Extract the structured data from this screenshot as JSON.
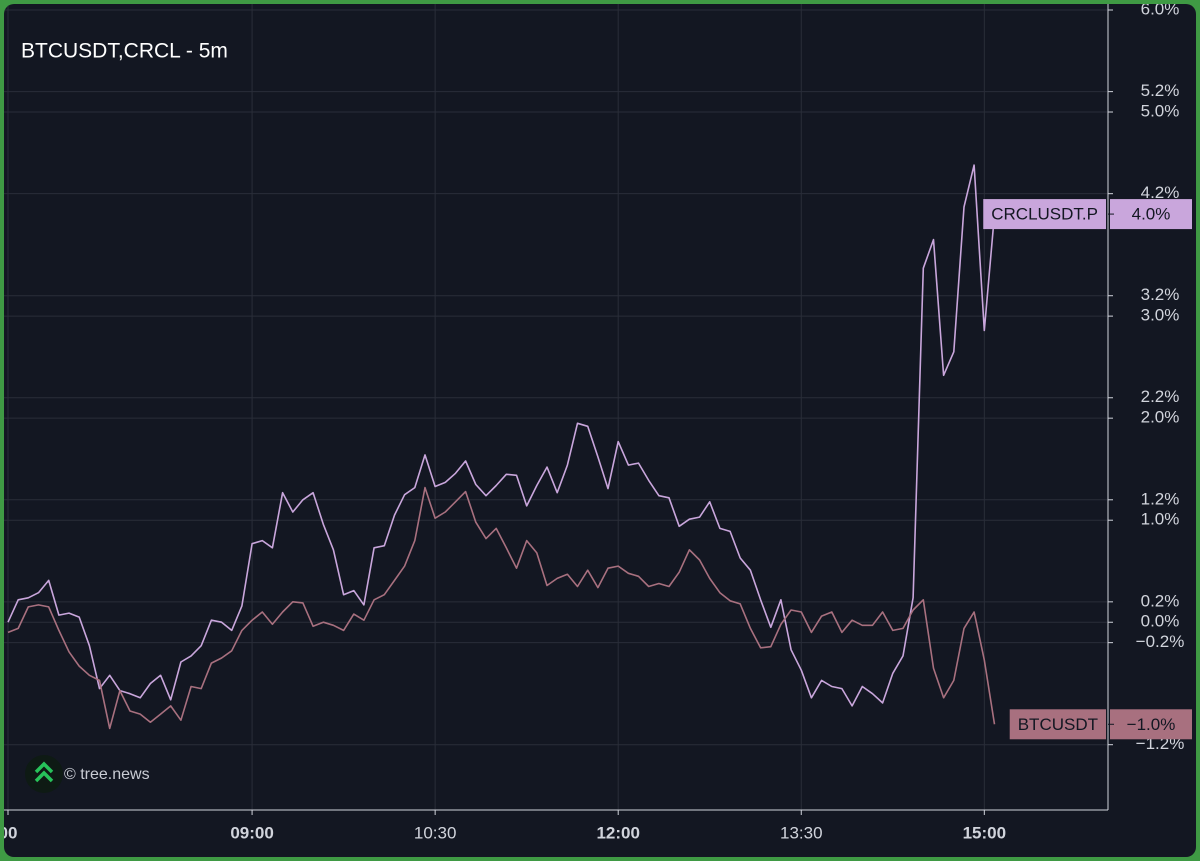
{
  "chart_data": {
    "type": "line",
    "title": "BTCUSDT,CRCL - 5m",
    "watermark": "© tree.news",
    "categories": [
      "00",
      null,
      null,
      null,
      null,
      null,
      null,
      null,
      null,
      null,
      null,
      null,
      null,
      null,
      null,
      null,
      null,
      null,
      null,
      null,
      null,
      null,
      null,
      null,
      "09:00",
      null,
      null,
      null,
      null,
      null,
      null,
      null,
      null,
      null,
      null,
      null,
      null,
      null,
      null,
      null,
      null,
      null,
      "10:30",
      null,
      null,
      null,
      null,
      null,
      null,
      null,
      null,
      null,
      null,
      null,
      null,
      null,
      null,
      null,
      null,
      null,
      "12:00",
      null,
      null,
      null,
      null,
      null,
      null,
      null,
      null,
      null,
      null,
      null,
      null,
      null,
      null,
      null,
      null,
      null,
      "13:30",
      null,
      null,
      null,
      null,
      null,
      null,
      null,
      null,
      null,
      null,
      null,
      null,
      null,
      null,
      null,
      null,
      null,
      "15:00",
      null
    ],
    "series": [
      {
        "name": "CRCLUSDT.P",
        "color": "#c9a6dc",
        "last_value_label": "4.0%",
        "values": [
          0.0,
          0.22,
          0.24,
          0.29,
          0.41,
          0.07,
          0.09,
          0.05,
          -0.23,
          -0.65,
          -0.52,
          -0.67,
          -0.7,
          -0.74,
          -0.6,
          -0.52,
          -0.76,
          -0.39,
          -0.33,
          -0.23,
          0.02,
          0.0,
          -0.08,
          0.16,
          0.77,
          0.8,
          0.73,
          1.27,
          1.08,
          1.2,
          1.27,
          0.96,
          0.71,
          0.27,
          0.31,
          0.17,
          0.73,
          0.75,
          1.05,
          1.25,
          1.32,
          1.64,
          1.33,
          1.37,
          1.46,
          1.58,
          1.35,
          1.24,
          1.34,
          1.45,
          1.44,
          1.14,
          1.34,
          1.52,
          1.27,
          1.54,
          1.95,
          1.92,
          1.62,
          1.31,
          1.77,
          1.54,
          1.56,
          1.39,
          1.24,
          1.22,
          0.94,
          1.01,
          1.03,
          1.18,
          0.92,
          0.89,
          0.63,
          0.51,
          0.22,
          -0.05,
          0.22,
          -0.27,
          -0.47,
          -0.74,
          -0.57,
          -0.63,
          -0.65,
          -0.82,
          -0.63,
          -0.7,
          -0.79,
          -0.5,
          -0.33,
          0.24,
          3.47,
          3.75,
          2.42,
          2.65,
          4.07,
          4.48,
          2.86,
          4.0
        ]
      },
      {
        "name": "BTCUSDT",
        "color": "#a8707f",
        "last_value_label": "−1.0%",
        "values": [
          -0.1,
          -0.06,
          0.15,
          0.17,
          0.15,
          -0.08,
          -0.29,
          -0.43,
          -0.52,
          -0.57,
          -1.04,
          -0.67,
          -0.87,
          -0.9,
          -0.98,
          -0.9,
          -0.82,
          -0.96,
          -0.63,
          -0.65,
          -0.4,
          -0.35,
          -0.28,
          -0.08,
          0.02,
          0.1,
          -0.02,
          0.1,
          0.2,
          0.19,
          -0.04,
          0.0,
          -0.03,
          -0.08,
          0.08,
          0.02,
          0.22,
          0.27,
          0.41,
          0.55,
          0.8,
          1.32,
          1.02,
          1.08,
          1.18,
          1.28,
          0.98,
          0.82,
          0.92,
          0.73,
          0.53,
          0.8,
          0.68,
          0.36,
          0.43,
          0.47,
          0.35,
          0.51,
          0.34,
          0.53,
          0.55,
          0.48,
          0.45,
          0.35,
          0.38,
          0.35,
          0.49,
          0.71,
          0.61,
          0.43,
          0.29,
          0.21,
          0.18,
          -0.06,
          -0.25,
          -0.24,
          -0.02,
          0.12,
          0.1,
          -0.1,
          0.06,
          0.1,
          -0.1,
          0.02,
          -0.03,
          -0.03,
          0.1,
          -0.08,
          -0.06,
          0.12,
          0.22,
          -0.45,
          -0.74,
          -0.57,
          -0.06,
          0.1,
          -0.37,
          -1.0
        ]
      }
    ],
    "ylim": [
      -1.84,
      6.0
    ],
    "yticks": [
      {
        "value": 6.0,
        "label": "6.0%"
      },
      {
        "value": 5.2,
        "label": "5.2%"
      },
      {
        "value": 5.0,
        "label": "5.0%"
      },
      {
        "value": 4.2,
        "label": "4.2%"
      },
      {
        "value": 3.2,
        "label": "3.2%"
      },
      {
        "value": 3.0,
        "label": "3.0%"
      },
      {
        "value": 2.2,
        "label": "2.2%"
      },
      {
        "value": 2.0,
        "label": "2.0%"
      },
      {
        "value": 1.2,
        "label": "1.2%"
      },
      {
        "value": 1.0,
        "label": "1.0%"
      },
      {
        "value": 0.2,
        "label": "0.2%"
      },
      {
        "value": 0.0,
        "label": "0.0%"
      },
      {
        "value": -0.2,
        "label": "−0.2%"
      },
      {
        "value": -1.2,
        "label": "−1.2%"
      }
    ],
    "grid": true
  }
}
